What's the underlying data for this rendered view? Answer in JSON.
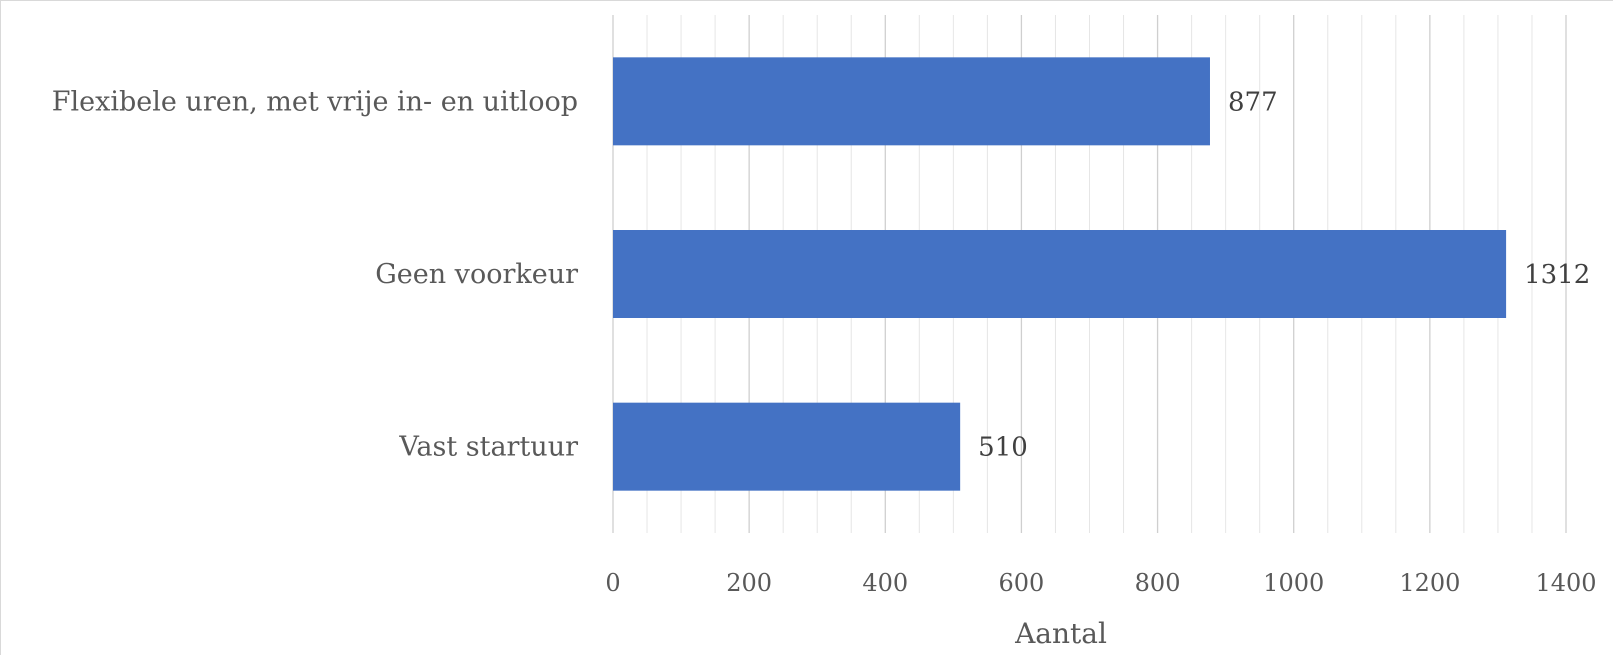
{
  "chart_data": {
    "type": "bar",
    "orientation": "horizontal",
    "categories": [
      "Flexibele uren, met vrije in- en uitloop",
      "Geen voorkeur",
      "Vast startuur"
    ],
    "values": [
      877,
      1312,
      510
    ],
    "data_labels": [
      "877",
      "1312",
      "510"
    ],
    "xlabel": "Aantal",
    "ylabel": "",
    "xlim": [
      0,
      1400
    ],
    "ticks": [
      0,
      200,
      400,
      600,
      800,
      1000,
      1200,
      1400
    ],
    "tick_labels": [
      "0",
      "200",
      "400",
      "600",
      "800",
      "1000",
      "1200",
      "1400"
    ],
    "grid": "vertical major and minor",
    "legend": "none",
    "bar_color": "#4472C4"
  }
}
